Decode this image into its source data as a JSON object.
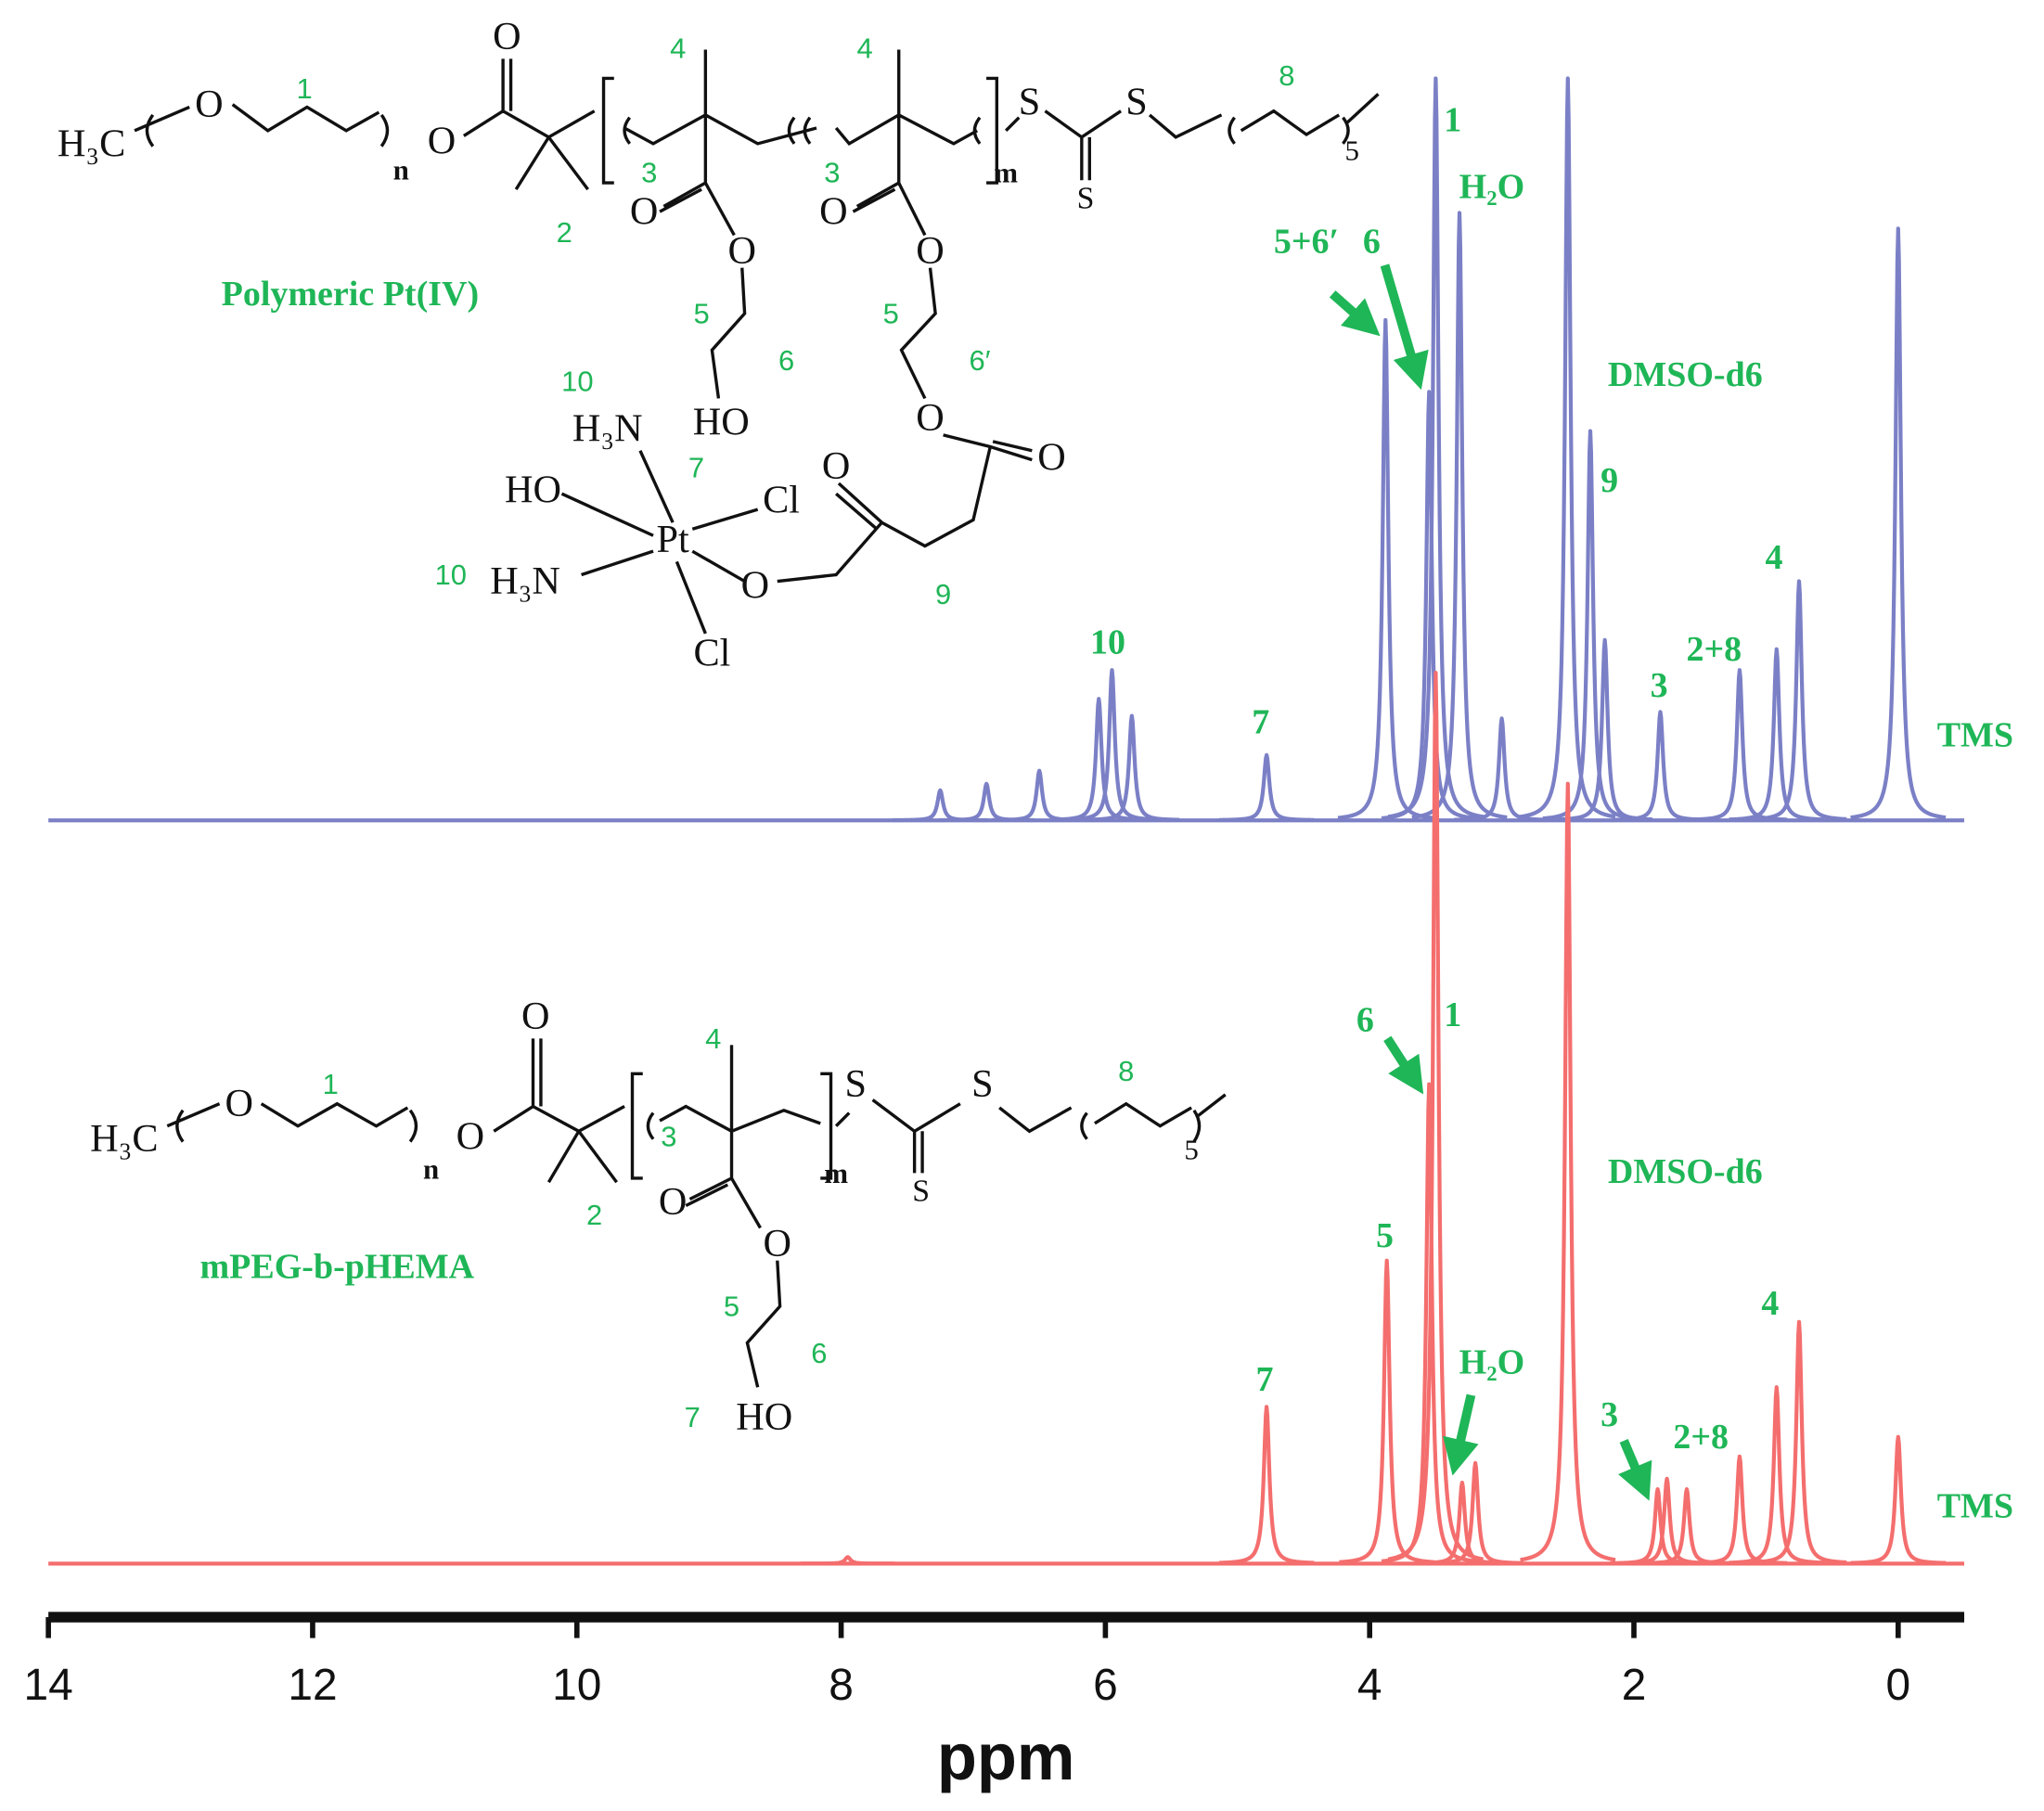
{
  "chart_data": {
    "type": "spectrum",
    "x_label": "ppm",
    "xlim": [
      14,
      -0.5
    ],
    "xticks": [
      14,
      12,
      10,
      8,
      6,
      4,
      2,
      0
    ],
    "series": [
      {
        "name": "Polymeric Pt(IV)",
        "color": "#7b80c6",
        "x": [
          7.25,
          6.9,
          6.5,
          6.05,
          5.95,
          5.8,
          4.78,
          3.88,
          3.55,
          3.5,
          3.32,
          3.0,
          2.5,
          2.33,
          2.22,
          1.8,
          1.2,
          0.92,
          0.75,
          0.0
        ],
        "values": [
          23,
          28,
          38,
          93,
          115,
          80,
          50,
          383,
          328,
          568,
          465,
          78,
          568,
          298,
          138,
          83,
          115,
          131,
          183,
          453
        ]
      },
      {
        "name": "mPEG-b-pHEMA",
        "color": "#f46e6e",
        "x": [
          7.95,
          4.78,
          3.87,
          3.55,
          3.5,
          3.3,
          3.2,
          2.5,
          1.82,
          1.75,
          1.6,
          1.2,
          0.92,
          0.75,
          0.0
        ],
        "values": [
          5,
          120,
          232,
          367,
          682,
          62,
          77,
          597,
          57,
          65,
          57,
          82,
          135,
          185,
          97
        ]
      }
    ],
    "annotations_top": [
      "1",
      "H₂O",
      "5+6′",
      "6",
      "DMSO-d6",
      "9",
      "4",
      "2+8",
      "3",
      "10",
      "7",
      "TMS"
    ],
    "annotations_bottom": [
      "1",
      "6",
      "DMSO-d6",
      "5",
      "H₂O",
      "7",
      "3",
      "2+8",
      "4",
      "TMS"
    ],
    "structure_top_atoms": [
      "H₃C",
      "O",
      "n",
      "O",
      "O",
      "m",
      "S",
      "S",
      "S",
      "5",
      "O",
      "O",
      "HO",
      "O",
      "O",
      "O",
      "O",
      "O",
      "H₃N",
      "HO",
      "Cl",
      "Pt",
      "H₃N",
      "O",
      "Cl"
    ],
    "structure_top_numbers": [
      "1",
      "4",
      "4",
      "3",
      "3",
      "8",
      "2",
      "5",
      "6",
      "5",
      "6′",
      "10",
      "7",
      "10",
      "9"
    ],
    "structure_bottom_atoms": [
      "H₃C",
      "O",
      "n",
      "O",
      "O",
      "m",
      "S",
      "S",
      "S",
      "5",
      "O",
      "O",
      "HO"
    ],
    "structure_bottom_numbers": [
      "1",
      "4",
      "3",
      "8",
      "2",
      "5",
      "6",
      "7"
    ]
  }
}
